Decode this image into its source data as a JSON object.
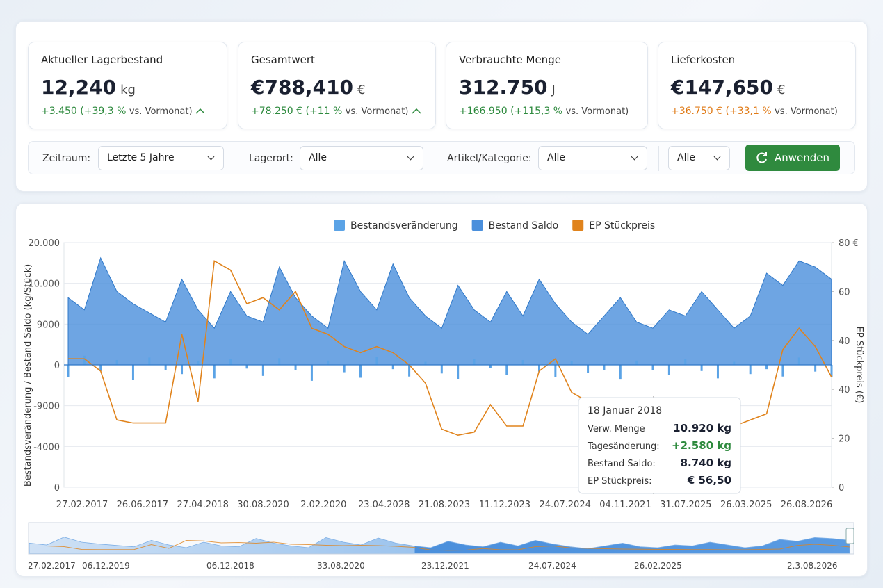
{
  "kpis": [
    {
      "title": "Aktueller Lagerbestand",
      "value": "12,240",
      "unit": "kg",
      "delta": "+3.450 (+39,3 %",
      "note": "vs. Vormonat)"
    },
    {
      "title": "Gesamtwert",
      "value": "€788,410",
      "unit": "€",
      "delta": "+78.250 € (+11 %",
      "note": "vs. Vormonat)"
    },
    {
      "title": "Verbrauchte Menge",
      "value": "312.750",
      "unit": "J",
      "delta": "+166.950 (+115,3 %",
      "note": "vs. Vormonat)"
    },
    {
      "title": "Lieferkosten",
      "value": "€147,650",
      "unit": "€",
      "delta": "+36.750 € (+33,1 %",
      "note": "vs. Vormonat)"
    }
  ],
  "filters": {
    "period_label": "Zeitraum:",
    "period_value": "Letzte 5 Jahre",
    "location_label": "Lagerort:",
    "location_value": "Alle",
    "article_label": "Artikel/Kategorie:",
    "article_value": "Alle",
    "extra_value": "Alle",
    "apply": "Anwenden"
  },
  "chart_data": {
    "type": "combo",
    "y_label": "Bestandsveränderung / Bestand Saldo (kg/Stück)",
    "y2_label": "EP Stückpreis (€)",
    "ylim": [
      -20000,
      20000
    ],
    "yticks": [
      {
        "value": 20000,
        "label": "20.000"
      },
      {
        "value": 10000,
        "label": "10.000"
      },
      9000,
      0,
      -9000,
      -4000,
      0
    ],
    "y2lim": [
      0,
      80
    ],
    "y2ticks": [
      {
        "value": 80,
        "label": "80 €"
      },
      60,
      40,
      40,
      20,
      0
    ],
    "x_tick_labels": [
      "27.02.2017",
      "26.06.2017",
      "27.04.2018",
      "30.08.2020",
      "2.02.2020",
      "23.04.2028",
      "21.08.2023",
      "11.12.2023",
      "24.07.2024",
      "04.11.2021",
      "31.07.2025",
      "26.03.2025",
      "26.08.2026"
    ],
    "grid": true,
    "series": [
      {
        "name": "Bestandsveränderung",
        "color": "#5ba3e6",
        "type": "bar",
        "values": [
          -2000,
          1500,
          -1000,
          800,
          -2500,
          1200,
          -800,
          -1500,
          600,
          -2200,
          900,
          -600,
          -1800,
          1100,
          -900,
          -2600,
          700,
          -1200,
          -2100,
          1300,
          -700,
          -1900,
          500,
          -1400,
          -2300,
          1000,
          -500,
          -1700,
          800,
          -1100,
          -2000,
          600,
          -1300,
          -900,
          -2400,
          700,
          -800,
          -1600,
          900,
          -1000,
          -2200,
          500,
          -1500,
          -700,
          -1900,
          1200,
          -1100,
          -2000
        ]
      },
      {
        "name": "Bestand Saldo",
        "color": "#4a8fdc",
        "type": "area",
        "values": [
          11000,
          9000,
          17500,
          12000,
          10000,
          8500,
          7000,
          14000,
          9000,
          6000,
          12000,
          8000,
          7000,
          16000,
          11000,
          8000,
          6000,
          17000,
          12000,
          9000,
          16500,
          11000,
          8000,
          6000,
          13000,
          9000,
          7000,
          12000,
          8000,
          14000,
          10000,
          7000,
          5000,
          8000,
          11000,
          7000,
          6000,
          9000,
          8000,
          12000,
          9000,
          6000,
          8000,
          15000,
          13000,
          17000,
          16000,
          14000
        ]
      },
      {
        "name": "EP Stückpreis",
        "color": "#e0831c",
        "type": "line",
        "axis": "y2",
        "values": [
          42,
          42,
          38,
          22,
          21,
          21,
          21,
          50,
          28,
          74,
          71,
          60,
          62,
          58,
          64,
          52,
          50,
          46,
          44,
          46,
          44,
          40,
          34,
          19,
          17,
          18,
          27,
          20,
          20,
          38,
          42,
          31,
          28,
          26,
          24,
          23,
          22,
          22,
          21,
          21,
          20,
          20,
          22,
          24,
          45,
          52,
          46,
          36
        ]
      }
    ],
    "tooltip": {
      "title": "18 Januar 2018",
      "rows": [
        [
          "Verw. Menge",
          "10.920 kg"
        ],
        [
          "Tagesänderung:",
          "+2.580 kg"
        ],
        [
          "Bestand Saldo:",
          "8.740 kg"
        ],
        [
          "EP Stückpreis:",
          "€ 56,50"
        ]
      ]
    },
    "navigator_labels": [
      "27.02.2017",
      "06.12.2019",
      "06.12.2018",
      "33.08.2020",
      "23.12.2021",
      "24.07.2024",
      "26.02.2025",
      "2.3.08.2026"
    ]
  }
}
